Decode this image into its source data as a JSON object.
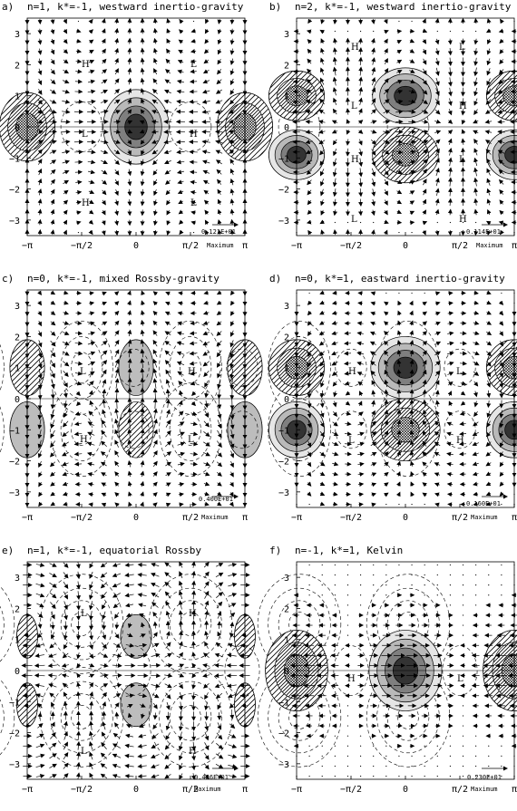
{
  "panels": [
    {
      "letter": "a)",
      "title": "n=1, k*=-1, westward inertio-gravity",
      "max_value": "0.121E+01",
      "max_label": "Maximum",
      "xticks": [
        "−π",
        "−π/2",
        "0",
        "π/2",
        "π"
      ],
      "yticks": [
        "3",
        "2",
        "1",
        "0",
        "−1",
        "−2",
        "−3"
      ],
      "features": [
        {
          "label": "H"
        },
        {
          "label": "L"
        },
        {
          "label": "L"
        },
        {
          "label": "H"
        },
        {
          "label": "H"
        },
        {
          "label": "L"
        }
      ]
    },
    {
      "letter": "b)",
      "title": "n=2, k*=-1, westward inertio-gravity",
      "max_value": "0.114E+01",
      "max_label": "Maximum",
      "xticks": [
        "−π",
        "−π/2",
        "0",
        "π/2",
        "π"
      ],
      "yticks": [
        "3",
        "2",
        "1",
        "0",
        "−1",
        "−2",
        "−3"
      ],
      "features": [
        {
          "label": "H"
        },
        {
          "label": "L"
        },
        {
          "label": "L"
        },
        {
          "label": "H"
        },
        {
          "label": "H"
        },
        {
          "label": "L"
        },
        {
          "label": "L"
        },
        {
          "label": "H"
        }
      ]
    },
    {
      "letter": "c)",
      "title": "n=0, k*=-1, mixed Rossby-gravity",
      "max_value": "0.400E+01",
      "max_label": "Maximum",
      "xticks": [
        "−π",
        "−π/2",
        "0",
        "π/2",
        "π"
      ],
      "yticks": [
        "3",
        "2",
        "1",
        "0",
        "−1",
        "−2",
        "−3"
      ],
      "features": [
        {
          "label": "L"
        },
        {
          "label": "H"
        },
        {
          "label": "H"
        },
        {
          "label": "L"
        }
      ]
    },
    {
      "letter": "d)",
      "title": "n=0, k*=1, eastward inertio-gravity",
      "max_value": "0.160E+01",
      "max_label": "Maximum",
      "xticks": [
        "−π",
        "−π/2",
        "0",
        "π/2",
        "π"
      ],
      "yticks": [
        "3",
        "2",
        "1",
        "0",
        "−1",
        "−2",
        "−3"
      ],
      "features": [
        {
          "label": "H"
        },
        {
          "label": "L"
        },
        {
          "label": "L"
        },
        {
          "label": "H"
        }
      ]
    },
    {
      "letter": "e)",
      "title": "n=1, k*=-1, equatorial Rossby",
      "max_value": "0.426E+01",
      "max_label": "Maximum",
      "xticks": [
        "−π",
        "−π/2",
        "0",
        "π/2",
        "π"
      ],
      "yticks": [
        "3",
        "2",
        "1",
        "0",
        "−1",
        "−2",
        "−3"
      ],
      "features": [
        {
          "label": "L"
        },
        {
          "label": "H"
        },
        {
          "label": "L"
        },
        {
          "label": "H"
        }
      ]
    },
    {
      "letter": "f)",
      "title": "n=-1, k*=1, Kelvin",
      "max_value": "0.230E+01",
      "max_label": "Maximum",
      "xticks": [
        "−π",
        "−π/2",
        "0",
        "π/2",
        "π"
      ],
      "yticks": [
        "3",
        "2",
        "1",
        "0",
        "−1",
        "−2",
        "−3"
      ],
      "features": [
        {
          "label": "H"
        },
        {
          "label": "L"
        }
      ]
    }
  ]
}
